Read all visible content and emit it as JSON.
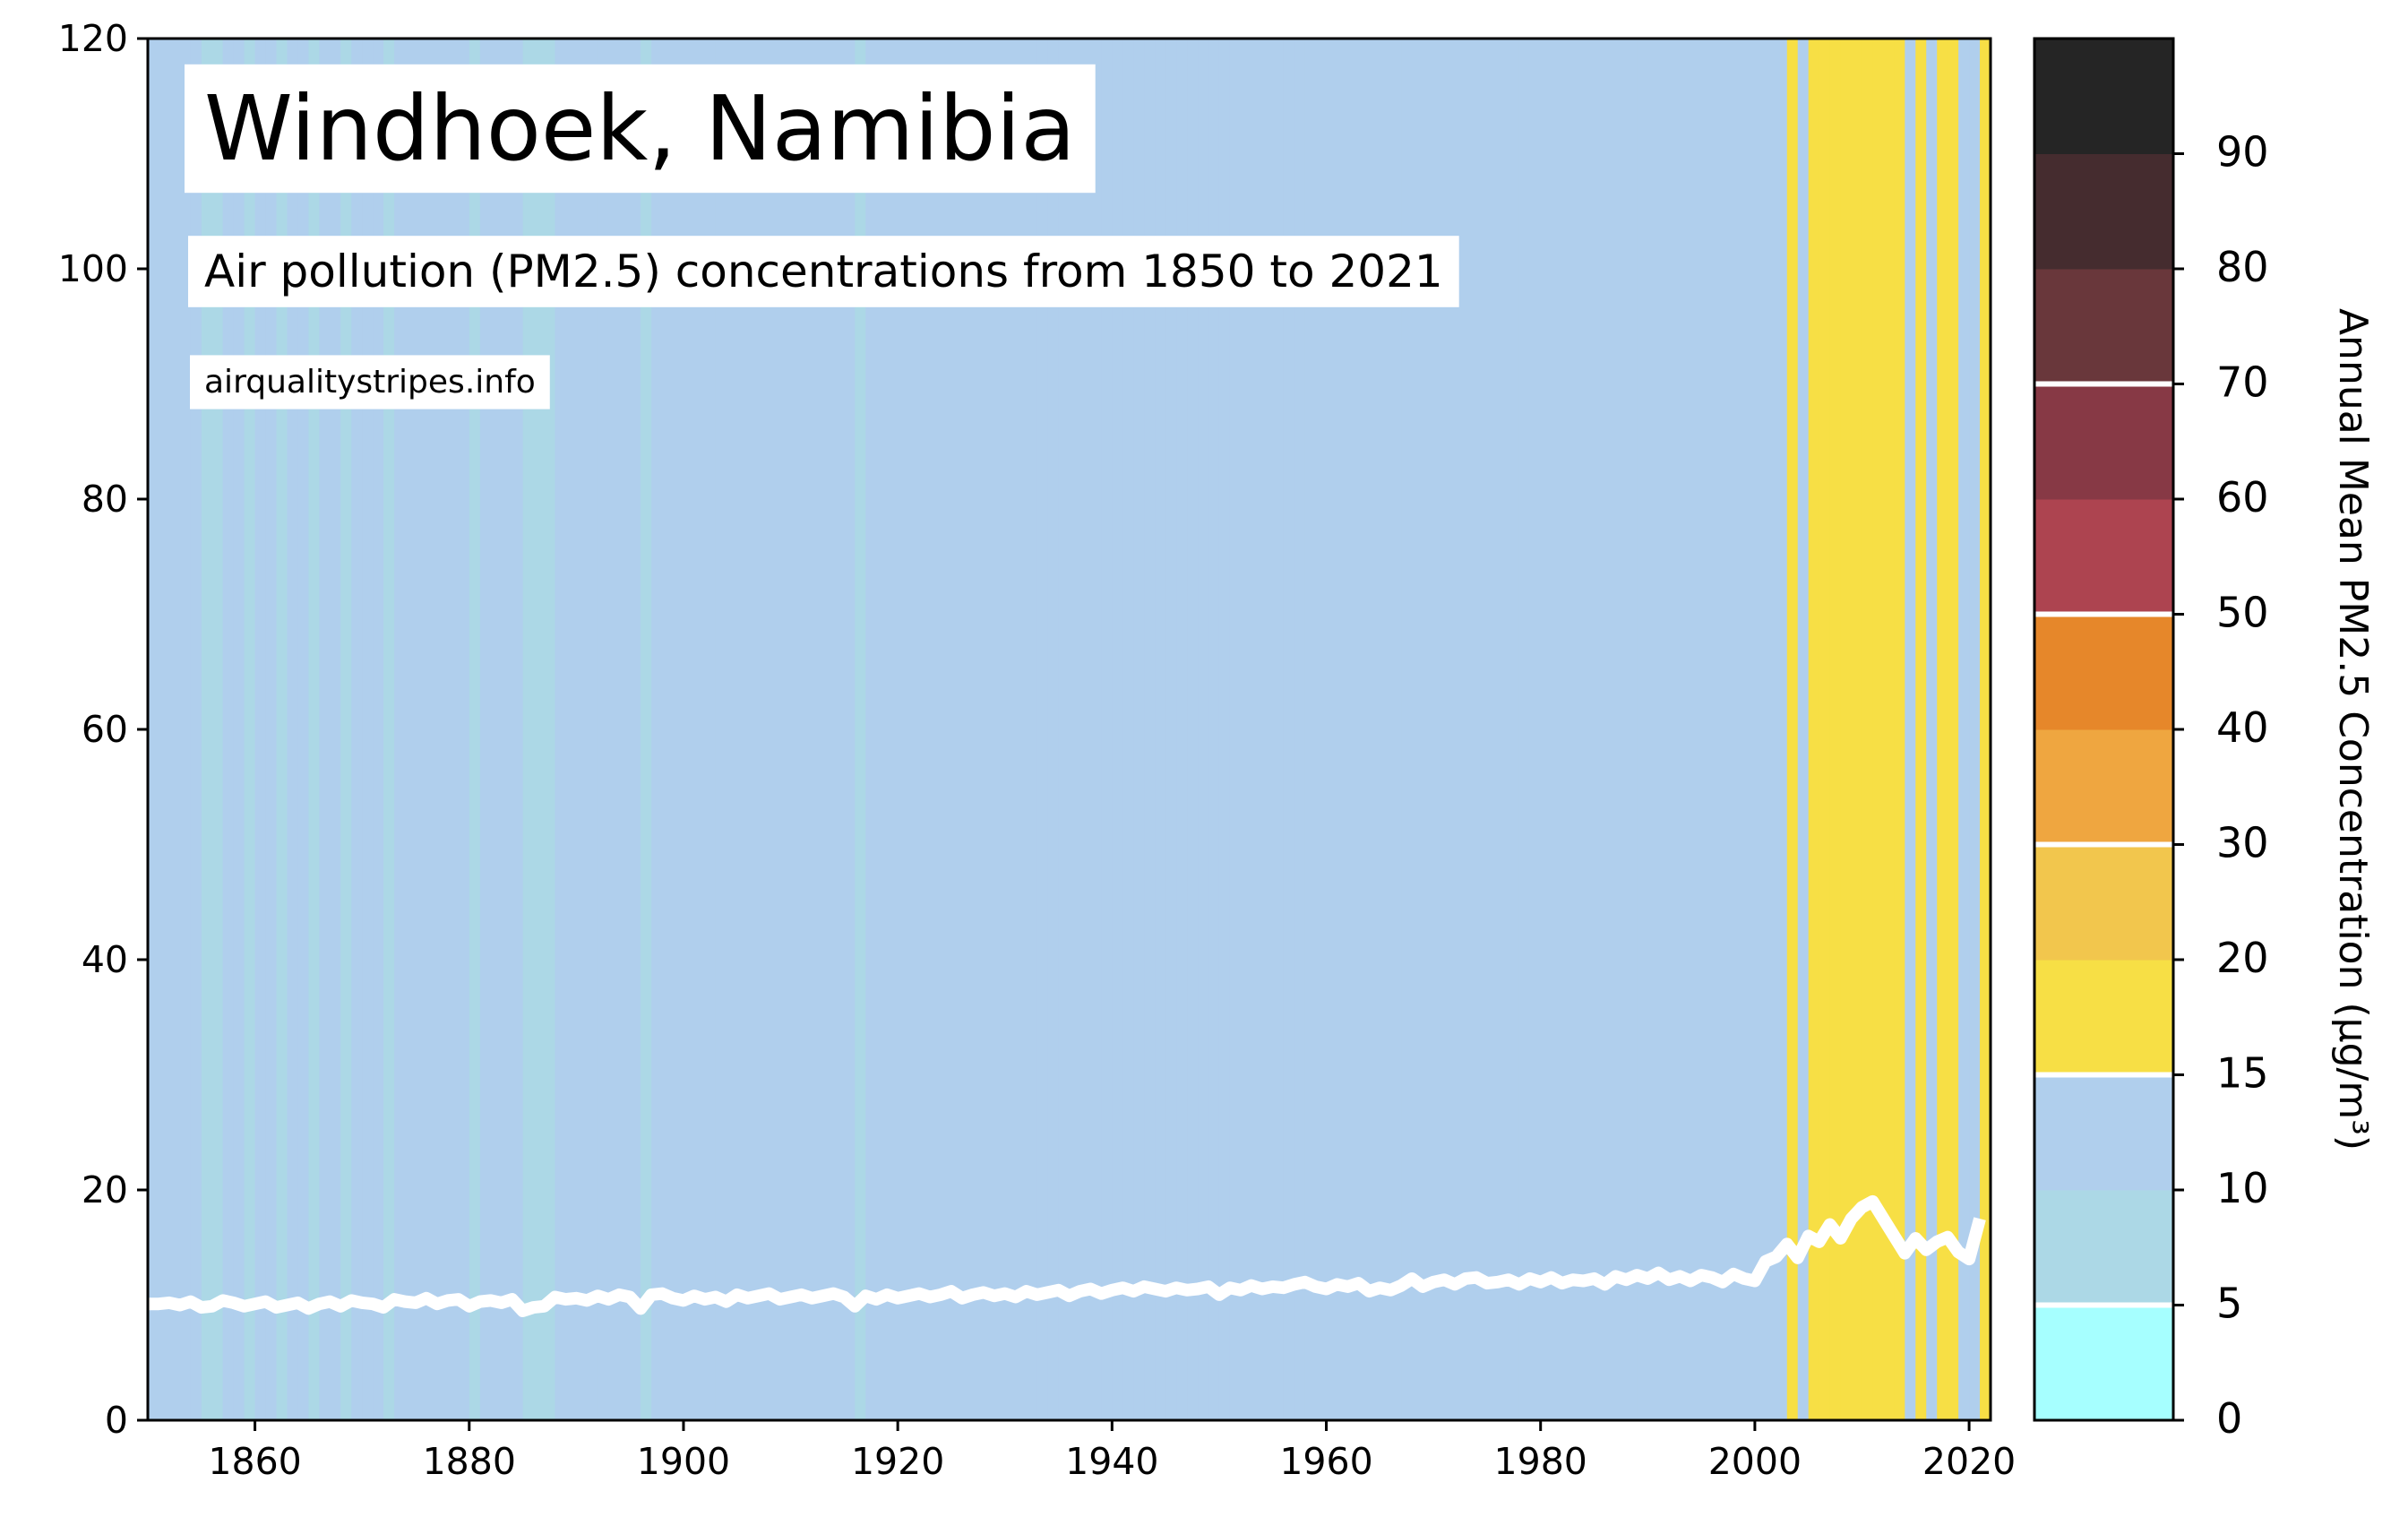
{
  "chart_data": {
    "type": "stripes",
    "title": "Windhoek, Namibia",
    "subtitle": "Air pollution (PM2.5) concentrations from 1850 to 2021",
    "source": "airqualitystripes.info",
    "line_color": "#ffffff",
    "x": [
      1850,
      1851,
      1852,
      1853,
      1854,
      1855,
      1856,
      1857,
      1858,
      1859,
      1860,
      1861,
      1862,
      1863,
      1864,
      1865,
      1866,
      1867,
      1868,
      1869,
      1870,
      1871,
      1872,
      1873,
      1874,
      1875,
      1876,
      1877,
      1878,
      1879,
      1880,
      1881,
      1882,
      1883,
      1884,
      1885,
      1886,
      1887,
      1888,
      1889,
      1890,
      1891,
      1892,
      1893,
      1894,
      1895,
      1896,
      1897,
      1898,
      1899,
      1900,
      1901,
      1902,
      1903,
      1904,
      1905,
      1906,
      1907,
      1908,
      1909,
      1910,
      1911,
      1912,
      1913,
      1914,
      1915,
      1916,
      1917,
      1918,
      1919,
      1920,
      1921,
      1922,
      1923,
      1924,
      1925,
      1926,
      1927,
      1928,
      1929,
      1930,
      1931,
      1932,
      1933,
      1934,
      1935,
      1936,
      1937,
      1938,
      1939,
      1940,
      1941,
      1942,
      1943,
      1944,
      1945,
      1946,
      1947,
      1948,
      1949,
      1950,
      1951,
      1952,
      1953,
      1954,
      1955,
      1956,
      1957,
      1958,
      1959,
      1960,
      1961,
      1962,
      1963,
      1964,
      1965,
      1966,
      1967,
      1968,
      1969,
      1970,
      1971,
      1972,
      1973,
      1974,
      1975,
      1976,
      1977,
      1978,
      1979,
      1980,
      1981,
      1982,
      1983,
      1984,
      1985,
      1986,
      1987,
      1988,
      1989,
      1990,
      1991,
      1992,
      1993,
      1994,
      1995,
      1996,
      1997,
      1998,
      1999,
      2000,
      2001,
      2002,
      2003,
      2004,
      2005,
      2006,
      2007,
      2008,
      2009,
      2010,
      2011,
      2012,
      2013,
      2014,
      2015,
      2016,
      2017,
      2018,
      2019,
      2020,
      2021
    ],
    "values": [
      10.1,
      10.1,
      10.2,
      10.0,
      10.3,
      9.8,
      9.9,
      10.4,
      10.2,
      9.9,
      10.1,
      10.3,
      9.8,
      10.0,
      10.2,
      9.7,
      10.1,
      10.3,
      9.9,
      10.4,
      10.2,
      10.1,
      9.8,
      10.5,
      10.3,
      10.2,
      10.6,
      10.1,
      10.4,
      10.5,
      9.9,
      10.3,
      10.4,
      10.2,
      10.5,
      9.5,
      9.8,
      9.9,
      10.7,
      10.5,
      10.6,
      10.4,
      10.8,
      10.5,
      10.9,
      10.7,
      9.7,
      10.9,
      11.0,
      10.6,
      10.4,
      10.8,
      10.5,
      10.7,
      10.3,
      10.9,
      10.6,
      10.8,
      11.0,
      10.5,
      10.7,
      10.9,
      10.6,
      10.8,
      11.0,
      10.7,
      9.9,
      10.8,
      10.5,
      10.9,
      10.6,
      10.8,
      11.0,
      10.7,
      10.9,
      11.2,
      10.6,
      10.9,
      11.1,
      10.8,
      11.0,
      10.7,
      11.2,
      10.9,
      11.1,
      11.3,
      10.8,
      11.2,
      11.4,
      11.0,
      11.3,
      11.5,
      11.2,
      11.6,
      11.4,
      11.2,
      11.5,
      11.3,
      11.4,
      11.6,
      10.9,
      11.5,
      11.3,
      11.7,
      11.4,
      11.6,
      11.5,
      11.8,
      12.0,
      11.6,
      11.4,
      11.8,
      11.6,
      11.9,
      11.2,
      11.5,
      11.3,
      11.7,
      12.3,
      11.6,
      12.0,
      12.2,
      11.8,
      12.3,
      12.4,
      11.9,
      12.0,
      12.2,
      11.8,
      12.3,
      12.0,
      12.4,
      11.9,
      12.2,
      12.1,
      12.3,
      11.8,
      12.5,
      12.2,
      12.6,
      12.3,
      12.8,
      12.2,
      12.5,
      12.1,
      12.6,
      12.4,
      12.0,
      12.7,
      12.3,
      12.1,
      13.8,
      14.2,
      15.3,
      14.1,
      16.0,
      15.5,
      17.0,
      15.8,
      17.5,
      18.5,
      19.0,
      17.5,
      16.0,
      14.5,
      15.8,
      14.8,
      15.5,
      15.9,
      14.6,
      14.0,
      17.5
    ],
    "xlim": [
      1850,
      2022
    ],
    "xticks": [
      1860,
      1880,
      1900,
      1920,
      1940,
      1960,
      1980,
      2000,
      2020
    ],
    "ylim": [
      0,
      120
    ],
    "yticks": [
      0,
      20,
      40,
      60,
      80,
      100,
      120
    ],
    "colorbar": {
      "label": "Annual Mean PM2.5 Concentration (µg/m³)",
      "bounds": [
        0,
        5,
        10,
        15,
        20,
        30,
        40,
        50,
        60,
        70,
        80,
        90,
        100
      ],
      "colors": [
        "#a6ffff",
        "#acd8e6",
        "#b0cfed",
        "#f7df45",
        "#f2c64d",
        "#efa640",
        "#e6872a",
        "#ad4450",
        "#873945",
        "#69373b",
        "#452c2f",
        "#252525"
      ],
      "ticks": [
        0,
        5,
        10,
        15,
        20,
        30,
        40,
        50,
        60,
        70,
        80,
        90
      ],
      "guideline_lines": [
        5,
        15,
        30,
        50,
        70
      ]
    }
  }
}
